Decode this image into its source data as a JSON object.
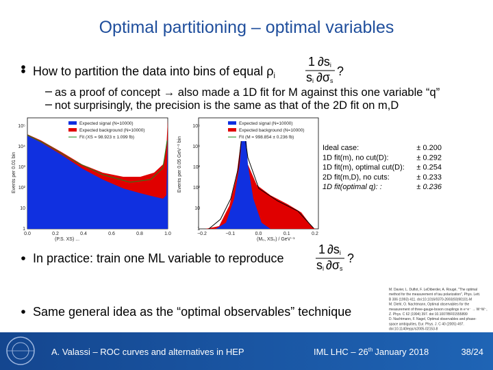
{
  "title": "Optimal partitioning – optimal variables",
  "bullets": [
    {
      "text": "How to partition the data into bins of equal ρ",
      "subscript": "i",
      "suffix": "?",
      "sub": [
        "as a proof of concept → also made a 1D fit for M against this one variable “q”",
        "not surprisingly, the precision is the same as that of the 2D fit on m,D"
      ]
    },
    {
      "text": "In practice: train one ML variable to reproduce",
      "suffix": "?"
    },
    {
      "text": "Same general idea as the “optimal observables” technique"
    }
  ],
  "formula": {
    "one": "1",
    "ds": "∂s",
    "sub_i": "i",
    "s": "s",
    "dsigma": "∂σ",
    "sub_s": "s"
  },
  "figures": [
    {
      "ylabel": "Events per 0.01 bin",
      "xlabel": "(P.S. XS) ...",
      "xticks": [
        "0.0",
        "0.2",
        "0.4",
        "0.6",
        "0.8",
        "1.0"
      ],
      "yticks": [
        "10⁵",
        "10⁴",
        "10³",
        "10²",
        "10",
        "1"
      ],
      "legend": [
        "Expected signal (N=10000)",
        "Expected background (N=10000)",
        "Fit (XS = 98.923 ± 1.099 fb)"
      ]
    },
    {
      "ylabel": "Events per 0.05 GeV⁻¹ bin",
      "xlabel": "(M₀, XS₀) / GeV⁻¹",
      "xticks": [
        "−0.2",
        "−0.1",
        "0.0",
        "0.1",
        "0.2"
      ],
      "yticks": [
        "10⁵",
        "10⁴",
        "10³",
        "10²",
        "10",
        "1"
      ],
      "legend": [
        "Expected signal (N=10000)",
        "Expected background (N=10000)",
        "Fit (M = 998.854 ± 0.236 fb)"
      ]
    }
  ],
  "results": [
    [
      "Ideal case:",
      "± 0.200"
    ],
    [
      "1D fit(m), no cut(D):",
      "± 0.292"
    ],
    [
      "1D fit(m), optimal cut(D):",
      "± 0.254"
    ],
    [
      "2D fit(m,D), no cuts:",
      "± 0.233"
    ],
    [
      "1D fit(optimal q): :",
      "± 0.236"
    ]
  ],
  "references": [
    "M. Davier, L. Duflot, F. LeDiberder, A. Rougé, \"The optimal",
    "method for the measurement of tau polarization\", Phys. Lett.",
    "B 306 (1993) 411. doi:10.1016/0370-2693(93)90101-M",
    "M. Diehl, O. Nachtmann, Optimal observables for the",
    "measurement of three-gauge-boson couplings in e⁺e⁻ → W⁺W⁻,",
    "Z. Phys. C 62 (1994) 397. doi:10.1007/BF01555899",
    "D. Nachtmann, F. Nagel, Optimal observables and phase-",
    "space ambiguities, Eur. Phys. J. C 40 (2005) 497.",
    "doi:10.1140/epjc/s2005-02153-8"
  ],
  "footer": {
    "author": "A. Valassi – ROC curves and alternatives in HEP",
    "event": {
      "pre": "IML LHC – 26",
      "sup": "th",
      "post": "January 2018"
    },
    "page": "38/24"
  }
}
